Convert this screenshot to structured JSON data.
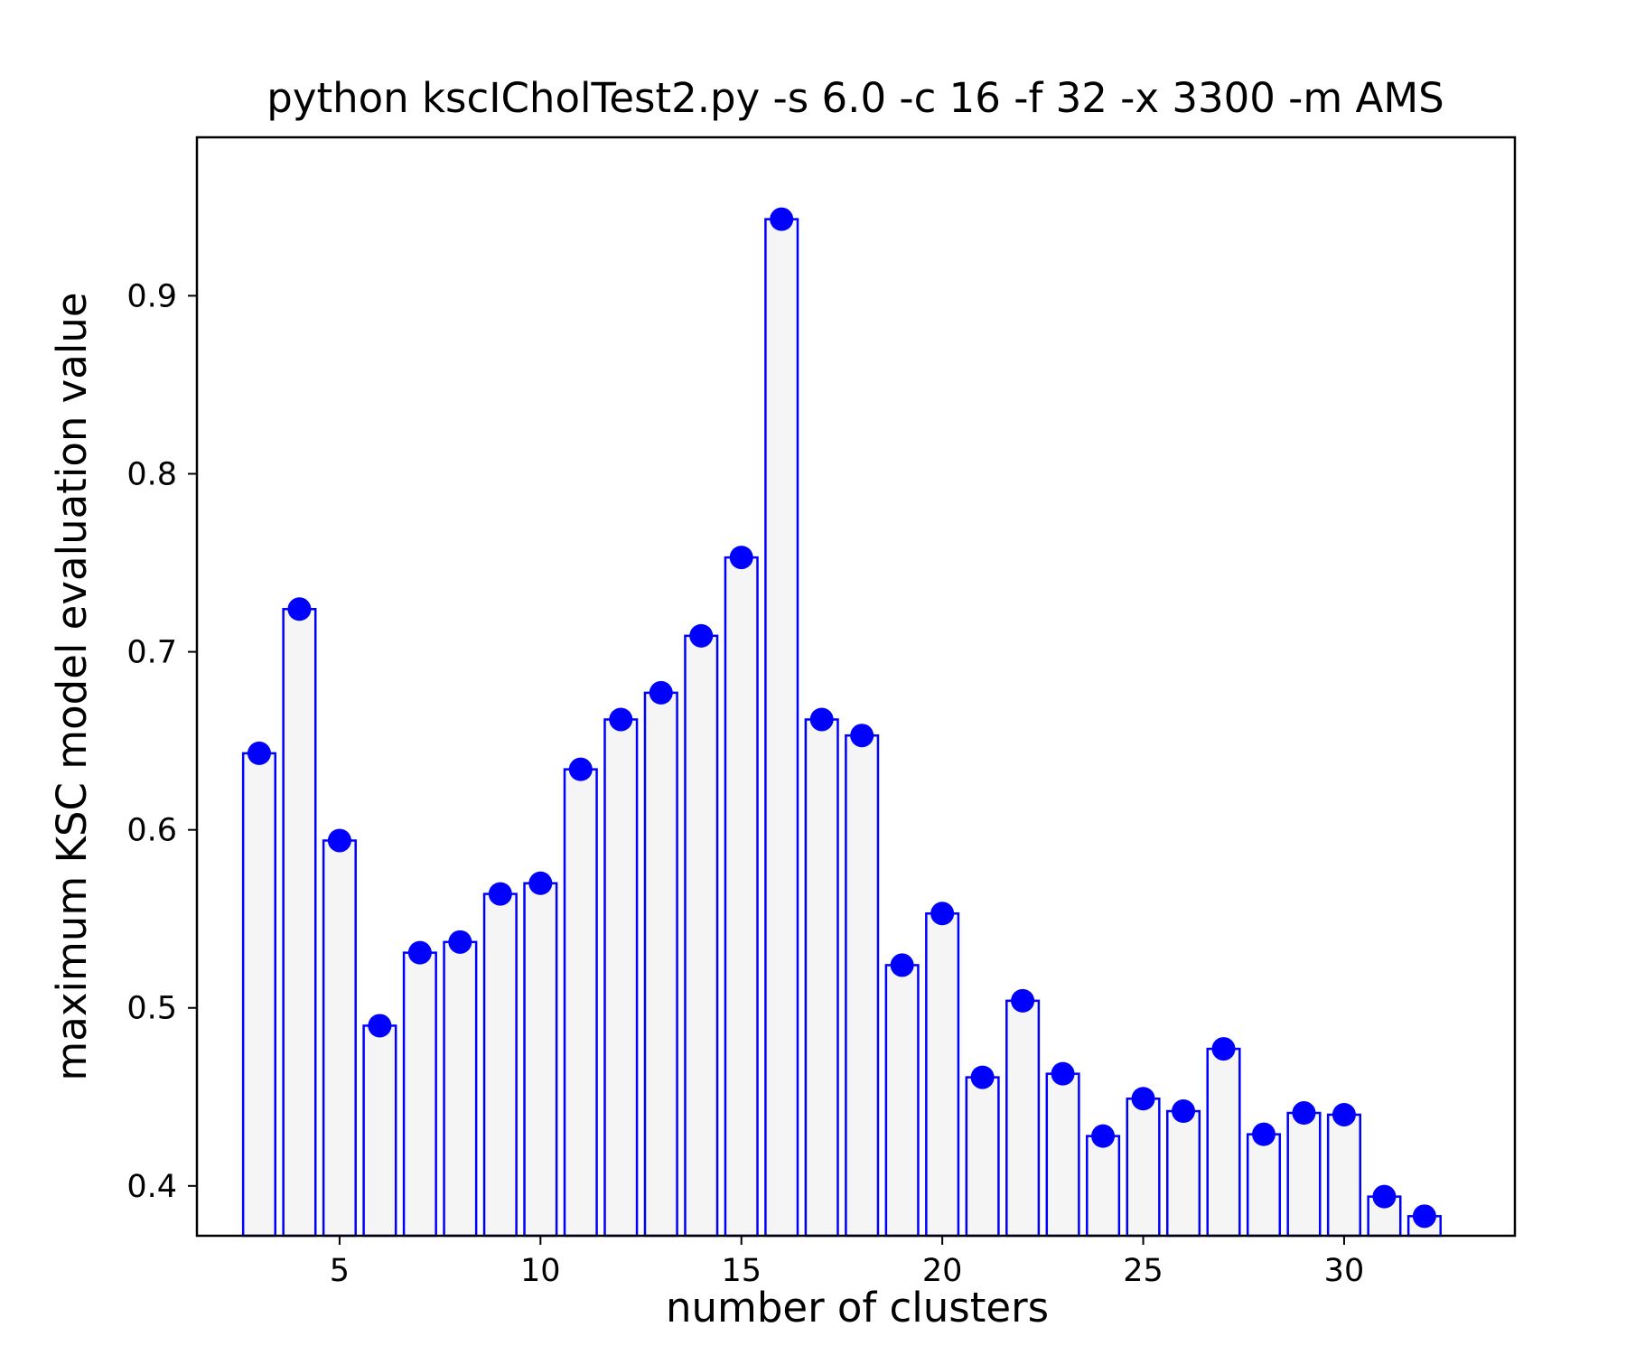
{
  "chart_data": {
    "type": "bar",
    "title": "python kscICholTest2.py -s 6.0 -c 16 -f 32 -x 3300 -m AMS",
    "xlabel": "number of clusters",
    "ylabel": "maximum KSC model evaluation value",
    "x": [
      3,
      4,
      5,
      6,
      7,
      8,
      9,
      10,
      11,
      12,
      13,
      14,
      15,
      16,
      17,
      18,
      19,
      20,
      21,
      22,
      23,
      24,
      25,
      26,
      27,
      28,
      29,
      30,
      31,
      32
    ],
    "values": [
      0.643,
      0.724,
      0.594,
      0.49,
      0.531,
      0.537,
      0.564,
      0.57,
      0.634,
      0.662,
      0.677,
      0.709,
      0.753,
      0.943,
      0.662,
      0.653,
      0.524,
      0.553,
      0.461,
      0.504,
      0.463,
      0.428,
      0.449,
      0.442,
      0.477,
      0.429,
      0.441,
      0.44,
      0.394,
      0.383
    ],
    "xlim": [
      1.45,
      34.25
    ],
    "ylim": [
      0.372,
      0.989
    ],
    "xticks": [
      5,
      10,
      15,
      20,
      25,
      30
    ],
    "yticks": [
      0.4,
      0.5,
      0.6,
      0.7,
      0.8,
      0.9
    ],
    "grid": false,
    "colors": {
      "bar_fill": "#f5f5f5",
      "bar_edge": "#0000ff",
      "marker": "#0000ff"
    }
  }
}
